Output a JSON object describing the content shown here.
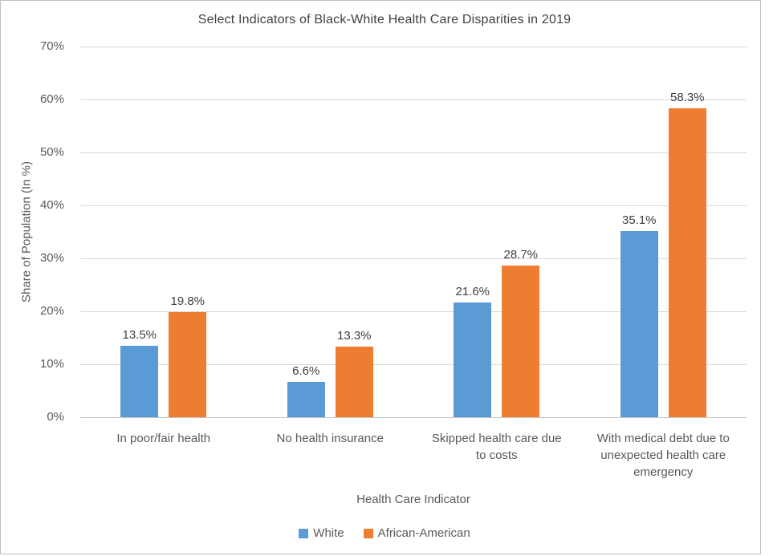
{
  "chart_data": {
    "type": "bar",
    "title": "Select Indicators of Black-White Health Care Disparities in 2019",
    "xlabel": "Health Care Indicator",
    "ylabel": "Share of Population (In %)",
    "categories": [
      "In poor/fair health",
      "No health insurance",
      "Skipped health care due to costs",
      "With medical debt due to unexpected health care emergency"
    ],
    "categories_display": [
      "In poor/fair health",
      "No health insurance",
      "Skipped health care due\nto costs",
      "With medical debt due to\nunexpected health care\nemergency"
    ],
    "series": [
      {
        "name": "White",
        "color": "#5B9BD5",
        "values": [
          13.5,
          6.6,
          21.6,
          35.1
        ]
      },
      {
        "name": "African-American",
        "color": "#ED7D31",
        "values": [
          19.8,
          13.3,
          28.7,
          58.3
        ]
      }
    ],
    "data_labels": [
      "13.5%",
      "6.6%",
      "21.6%",
      "35.1%",
      "19.8%",
      "13.3%",
      "28.7%",
      "58.3%"
    ],
    "value_suffix": "%",
    "ylim": [
      0,
      70
    ],
    "ytick_step": 10,
    "ytick_labels": [
      "0%",
      "10%",
      "20%",
      "30%",
      "40%",
      "50%",
      "60%",
      "70%"
    ],
    "grid": true,
    "legend_position": "bottom"
  }
}
